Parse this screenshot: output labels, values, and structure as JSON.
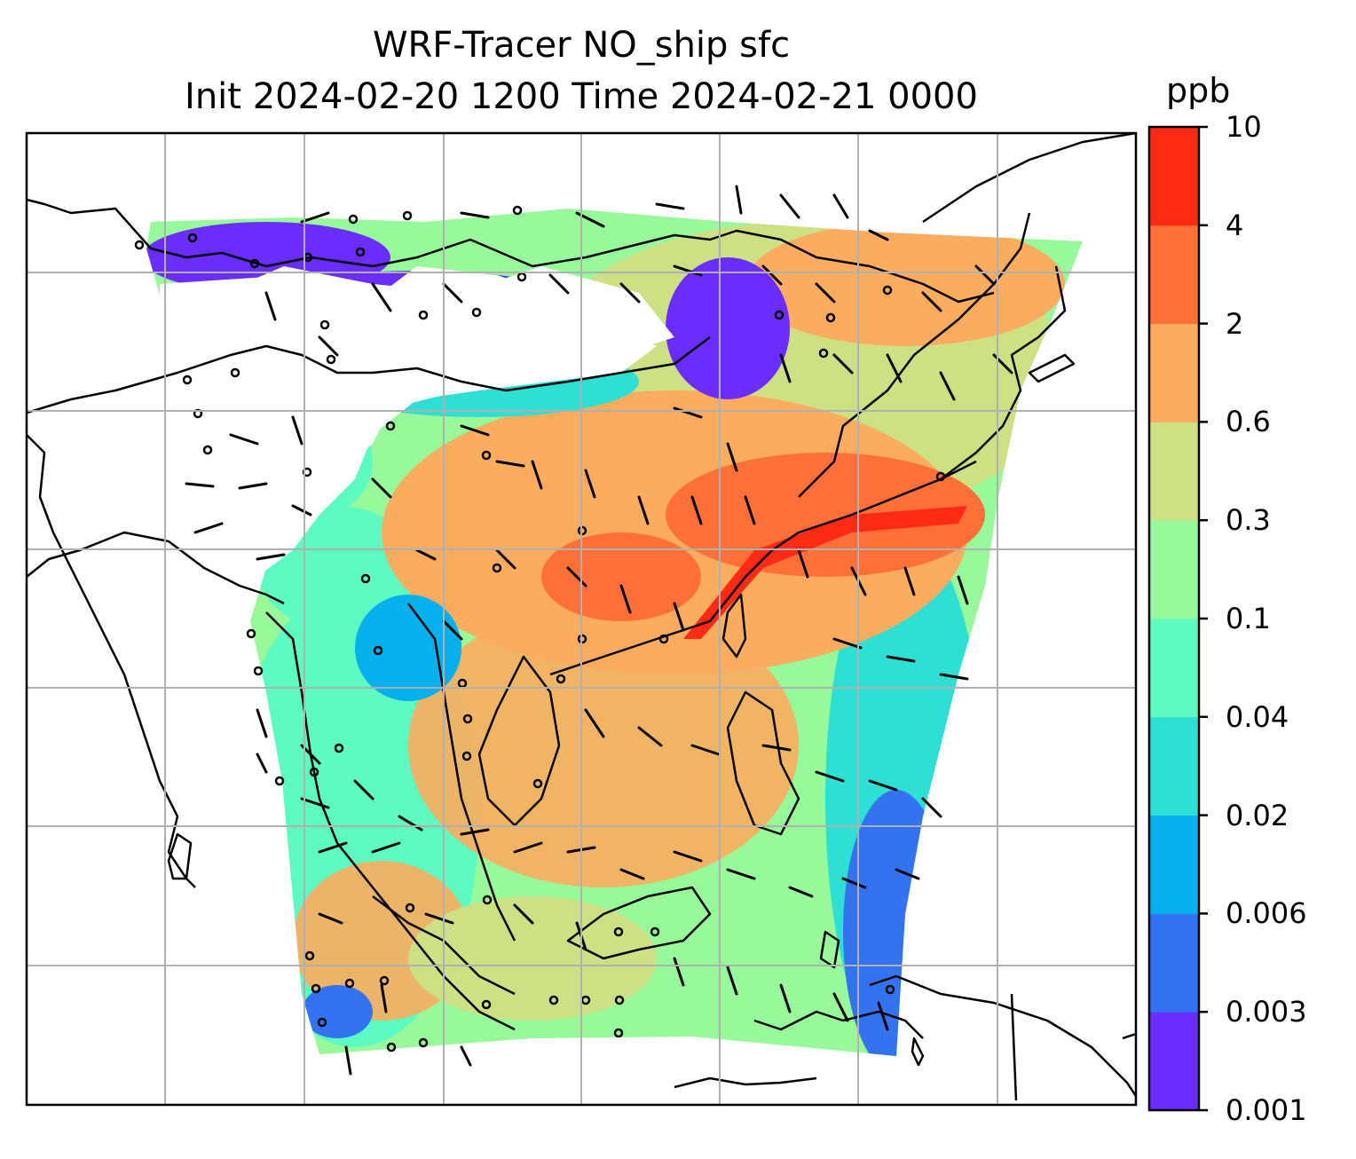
{
  "title_line1": "WRF-Tracer NO_ship sfc",
  "title_line2": "Init 2024-02-20 1200 Time 2024-02-21 0000",
  "colorbar": {
    "unit": "ppb",
    "ticks": [
      "0.001",
      "0.003",
      "0.006",
      "0.02",
      "0.04",
      "0.1",
      "0.3",
      "0.6",
      "2",
      "4",
      "10"
    ],
    "colors": [
      "#6a2cff",
      "#3373f0",
      "#06b0ec",
      "#2ee0d4",
      "#5dfac2",
      "#97f99a",
      "#cde184",
      "#fbac5e",
      "#ff7038",
      "#ff2a14"
    ]
  },
  "map": {
    "gridlines": true,
    "wind_barbs": true,
    "coastlines": true,
    "fill_colormap": "rainbow",
    "low_value_color": "#6a2cff",
    "high_value_color": "#ff2a14"
  }
}
